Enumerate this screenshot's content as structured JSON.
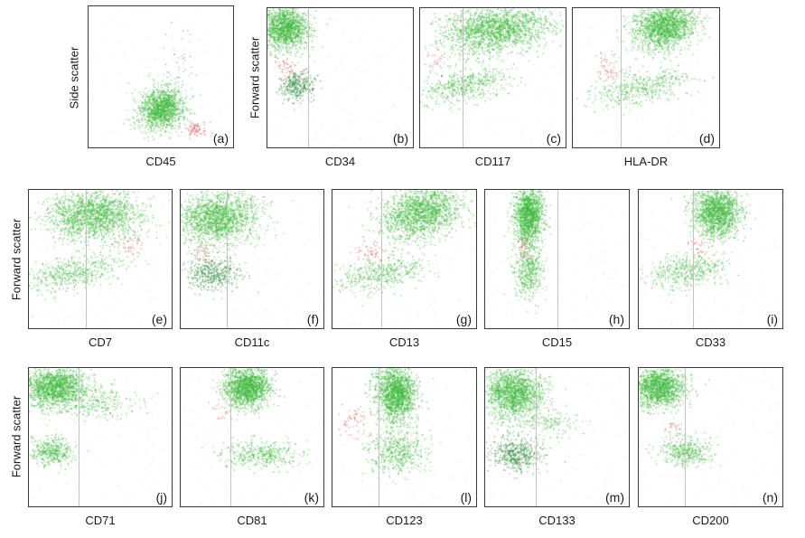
{
  "y_axis_labels": {
    "row1_left": "Side scatter",
    "row1_right": "Forward scatter",
    "row2": "Forward scatter",
    "row3": "Forward scatter"
  },
  "chart_data": [
    {
      "type": "scatter",
      "panel": "(a)",
      "xlabel": "CD45",
      "ylabel": "Side scatter",
      "gate": null,
      "clusters": [
        {
          "color": "#3db83a",
          "x": 0.5,
          "y": 0.28,
          "sx": 0.07,
          "sy": 0.08,
          "n": 1400,
          "rot": -0.9
        },
        {
          "color": "#e05050",
          "x": 0.74,
          "y": 0.13,
          "sx": 0.04,
          "sy": 0.03,
          "n": 80,
          "rot": 0
        },
        {
          "color": "#7a7aa0",
          "x": 0.62,
          "y": 0.6,
          "sx": 0.05,
          "sy": 0.15,
          "n": 40,
          "rot": 0
        }
      ]
    },
    {
      "type": "scatter",
      "panel": "(b)",
      "xlabel": "CD34",
      "ylabel": "Forward scatter",
      "gate": 0.28,
      "clusters": [
        {
          "color": "#3db83a",
          "x": 0.12,
          "y": 0.86,
          "sx": 0.08,
          "sy": 0.08,
          "n": 1500,
          "rot": 0
        },
        {
          "color": "#2e8a3a",
          "x": 0.2,
          "y": 0.44,
          "sx": 0.06,
          "sy": 0.05,
          "n": 350,
          "rot": 0
        },
        {
          "color": "#e05050",
          "x": 0.13,
          "y": 0.58,
          "sx": 0.04,
          "sy": 0.05,
          "n": 50,
          "rot": 0
        }
      ]
    },
    {
      "type": "scatter",
      "panel": "(c)",
      "xlabel": "CD117",
      "ylabel": "Forward scatter",
      "gate": 0.29,
      "clusters": [
        {
          "color": "#3db83a",
          "x": 0.52,
          "y": 0.85,
          "sx": 0.18,
          "sy": 0.08,
          "n": 1800,
          "rot": 0.1
        },
        {
          "color": "#3db83a",
          "x": 0.3,
          "y": 0.45,
          "sx": 0.15,
          "sy": 0.06,
          "n": 500,
          "rot": 0.2
        },
        {
          "color": "#e05050",
          "x": 0.12,
          "y": 0.62,
          "sx": 0.04,
          "sy": 0.05,
          "n": 40,
          "rot": 0
        }
      ]
    },
    {
      "type": "scatter",
      "panel": "(d)",
      "xlabel": "HLA-DR",
      "ylabel": "Forward scatter",
      "gate": 0.33,
      "clusters": [
        {
          "color": "#3db83a",
          "x": 0.63,
          "y": 0.87,
          "sx": 0.11,
          "sy": 0.08,
          "n": 1700,
          "rot": 0.3
        },
        {
          "color": "#3db83a",
          "x": 0.45,
          "y": 0.43,
          "sx": 0.18,
          "sy": 0.06,
          "n": 450,
          "rot": 0.2
        },
        {
          "color": "#e05050",
          "x": 0.24,
          "y": 0.58,
          "sx": 0.05,
          "sy": 0.06,
          "n": 50,
          "rot": 0
        }
      ]
    },
    {
      "type": "scatter",
      "panel": "(e)",
      "xlabel": "CD7",
      "ylabel": "Forward scatter",
      "gate": 0.4,
      "clusters": [
        {
          "color": "#3db83a",
          "x": 0.45,
          "y": 0.82,
          "sx": 0.16,
          "sy": 0.09,
          "n": 1700,
          "rot": 0
        },
        {
          "color": "#3db83a",
          "x": 0.3,
          "y": 0.4,
          "sx": 0.18,
          "sy": 0.06,
          "n": 500,
          "rot": 0.2
        },
        {
          "color": "#e05050",
          "x": 0.72,
          "y": 0.6,
          "sx": 0.05,
          "sy": 0.04,
          "n": 40,
          "rot": 0
        }
      ]
    },
    {
      "type": "scatter",
      "panel": "(f)",
      "xlabel": "CD11c",
      "ylabel": "Forward scatter",
      "gate": 0.32,
      "clusters": [
        {
          "color": "#3db83a",
          "x": 0.26,
          "y": 0.8,
          "sx": 0.14,
          "sy": 0.09,
          "n": 1700,
          "rot": 0.1
        },
        {
          "color": "#2e8a3a",
          "x": 0.22,
          "y": 0.4,
          "sx": 0.1,
          "sy": 0.06,
          "n": 450,
          "rot": 0
        },
        {
          "color": "#e05050",
          "x": 0.15,
          "y": 0.55,
          "sx": 0.04,
          "sy": 0.04,
          "n": 30,
          "rot": 0
        }
      ]
    },
    {
      "type": "scatter",
      "panel": "(g)",
      "xlabel": "CD13",
      "ylabel": "Forward scatter",
      "gate": 0.34,
      "clusters": [
        {
          "color": "#3db83a",
          "x": 0.62,
          "y": 0.84,
          "sx": 0.14,
          "sy": 0.09,
          "n": 1700,
          "rot": 0.3
        },
        {
          "color": "#3db83a",
          "x": 0.34,
          "y": 0.4,
          "sx": 0.16,
          "sy": 0.06,
          "n": 450,
          "rot": 0.2
        },
        {
          "color": "#e05050",
          "x": 0.25,
          "y": 0.55,
          "sx": 0.06,
          "sy": 0.05,
          "n": 50,
          "rot": 0
        }
      ]
    },
    {
      "type": "scatter",
      "panel": "(h)",
      "xlabel": "CD15",
      "ylabel": "Forward scatter",
      "gate": 0.5,
      "clusters": [
        {
          "color": "#3db83a",
          "x": 0.3,
          "y": 0.82,
          "sx": 0.05,
          "sy": 0.1,
          "n": 1500,
          "rot": 0
        },
        {
          "color": "#3db83a",
          "x": 0.3,
          "y": 0.42,
          "sx": 0.05,
          "sy": 0.1,
          "n": 450,
          "rot": 0
        },
        {
          "color": "#e05050",
          "x": 0.27,
          "y": 0.58,
          "sx": 0.03,
          "sy": 0.04,
          "n": 40,
          "rot": 0
        }
      ]
    },
    {
      "type": "scatter",
      "panel": "(i)",
      "xlabel": "CD33",
      "ylabel": "Forward scatter",
      "gate": 0.38,
      "clusters": [
        {
          "color": "#3db83a",
          "x": 0.54,
          "y": 0.84,
          "sx": 0.08,
          "sy": 0.09,
          "n": 1600,
          "rot": 0.3
        },
        {
          "color": "#3db83a",
          "x": 0.34,
          "y": 0.42,
          "sx": 0.14,
          "sy": 0.06,
          "n": 450,
          "rot": 0.2
        },
        {
          "color": "#e05050",
          "x": 0.4,
          "y": 0.6,
          "sx": 0.04,
          "sy": 0.04,
          "n": 30,
          "rot": 0
        }
      ]
    },
    {
      "type": "scatter",
      "panel": "(j)",
      "xlabel": "CD71",
      "ylabel": "Forward scatter",
      "gate": 0.35,
      "clusters": [
        {
          "color": "#3db83a",
          "x": 0.18,
          "y": 0.86,
          "sx": 0.11,
          "sy": 0.07,
          "n": 1600,
          "rot": 0
        },
        {
          "color": "#3db83a",
          "x": 0.16,
          "y": 0.4,
          "sx": 0.07,
          "sy": 0.05,
          "n": 400,
          "rot": 0
        },
        {
          "color": "#3db83a",
          "x": 0.5,
          "y": 0.75,
          "sx": 0.12,
          "sy": 0.06,
          "n": 250,
          "rot": 0
        }
      ]
    },
    {
      "type": "scatter",
      "panel": "(k)",
      "xlabel": "CD81",
      "ylabel": "Forward scatter",
      "gate": 0.35,
      "clusters": [
        {
          "color": "#3db83a",
          "x": 0.46,
          "y": 0.86,
          "sx": 0.08,
          "sy": 0.07,
          "n": 1600,
          "rot": 0
        },
        {
          "color": "#3db83a",
          "x": 0.56,
          "y": 0.38,
          "sx": 0.14,
          "sy": 0.05,
          "n": 400,
          "rot": 0
        },
        {
          "color": "#e05050",
          "x": 0.3,
          "y": 0.7,
          "sx": 0.04,
          "sy": 0.04,
          "n": 20,
          "rot": 0
        }
      ]
    },
    {
      "type": "scatter",
      "panel": "(l)",
      "xlabel": "CD123",
      "ylabel": "Forward scatter",
      "gate": 0.32,
      "clusters": [
        {
          "color": "#3db83a",
          "x": 0.44,
          "y": 0.82,
          "sx": 0.07,
          "sy": 0.1,
          "n": 1700,
          "rot": 0.1
        },
        {
          "color": "#3db83a",
          "x": 0.45,
          "y": 0.4,
          "sx": 0.1,
          "sy": 0.08,
          "n": 500,
          "rot": 0
        },
        {
          "color": "#e05050",
          "x": 0.14,
          "y": 0.62,
          "sx": 0.06,
          "sy": 0.06,
          "n": 60,
          "rot": 0
        }
      ]
    },
    {
      "type": "scatter",
      "panel": "(m)",
      "xlabel": "CD133",
      "ylabel": "Forward scatter",
      "gate": 0.35,
      "clusters": [
        {
          "color": "#3db83a",
          "x": 0.2,
          "y": 0.82,
          "sx": 0.1,
          "sy": 0.09,
          "n": 1600,
          "rot": 0
        },
        {
          "color": "#2e8a3a",
          "x": 0.21,
          "y": 0.38,
          "sx": 0.08,
          "sy": 0.06,
          "n": 500,
          "rot": 0
        },
        {
          "color": "#3db83a",
          "x": 0.45,
          "y": 0.6,
          "sx": 0.1,
          "sy": 0.06,
          "n": 150,
          "rot": 0
        }
      ]
    },
    {
      "type": "scatter",
      "panel": "(n)",
      "xlabel": "CD200",
      "ylabel": "Forward scatter",
      "gate": 0.32,
      "clusters": [
        {
          "color": "#3db83a",
          "x": 0.14,
          "y": 0.86,
          "sx": 0.09,
          "sy": 0.07,
          "n": 1500,
          "rot": 0
        },
        {
          "color": "#3db83a",
          "x": 0.32,
          "y": 0.4,
          "sx": 0.09,
          "sy": 0.05,
          "n": 400,
          "rot": 0
        },
        {
          "color": "#e05050",
          "x": 0.24,
          "y": 0.58,
          "sx": 0.03,
          "sy": 0.03,
          "n": 20,
          "rot": 0
        }
      ]
    }
  ]
}
